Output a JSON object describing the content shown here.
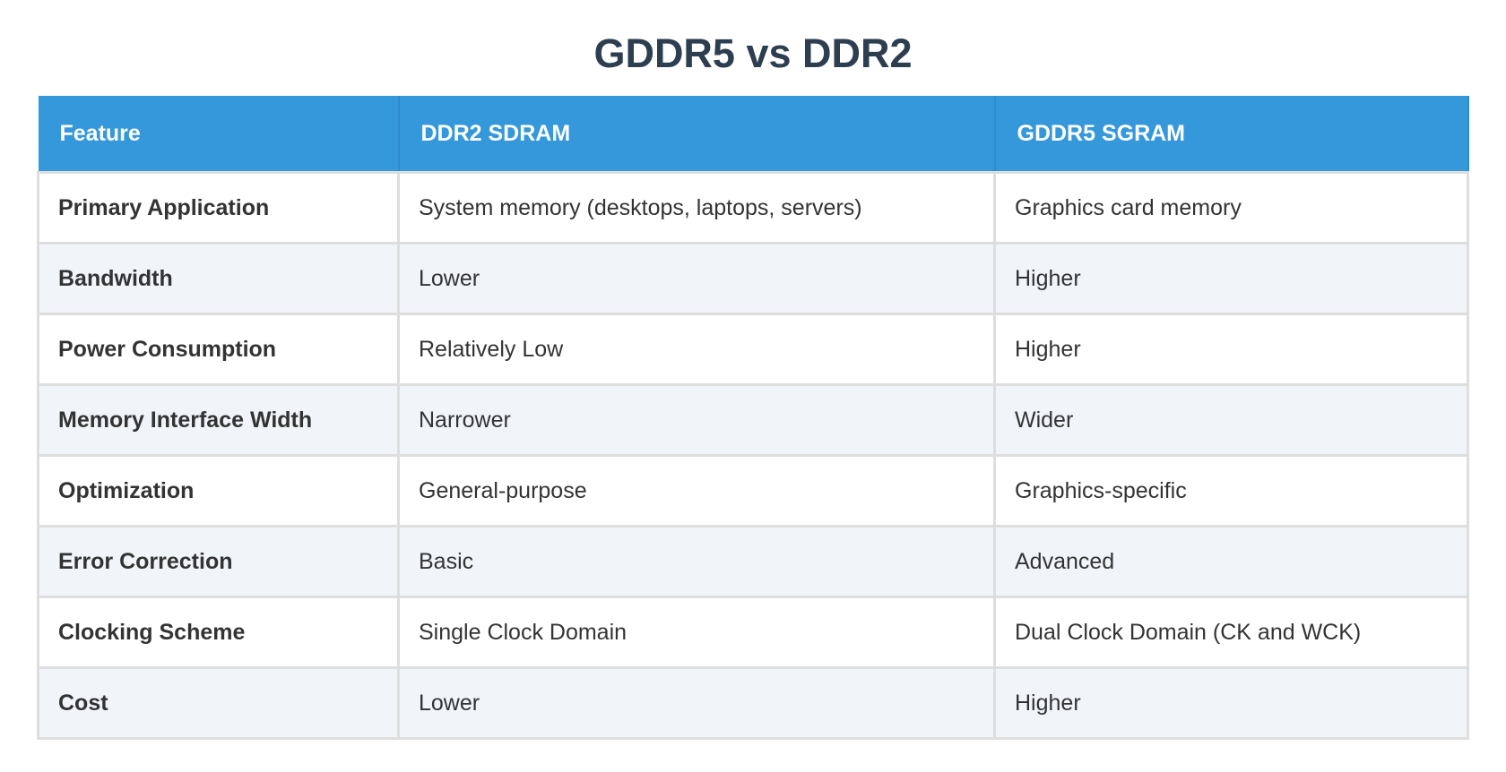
{
  "title": "GDDR5 vs DDR2",
  "table": {
    "headers": [
      "Feature",
      "DDR2 SDRAM",
      "GDDR5 SGRAM"
    ],
    "rows": [
      [
        "Primary Application",
        "System memory (desktops, laptops, servers)",
        "Graphics card memory"
      ],
      [
        "Bandwidth",
        "Lower",
        "Higher"
      ],
      [
        "Power Consumption",
        "Relatively Low",
        "Higher"
      ],
      [
        "Memory Interface Width",
        "Narrower",
        "Wider"
      ],
      [
        "Optimization",
        "General-purpose",
        "Graphics-specific"
      ],
      [
        "Error Correction",
        "Basic",
        "Advanced"
      ],
      [
        "Clocking Scheme",
        "Single Clock Domain",
        "Dual Clock Domain (CK and WCK)"
      ],
      [
        "Cost",
        "Lower",
        "Higher"
      ]
    ]
  },
  "colors": {
    "header": "#3498db",
    "title": "#2c3e50",
    "alt_row": "#f1f5fa"
  }
}
